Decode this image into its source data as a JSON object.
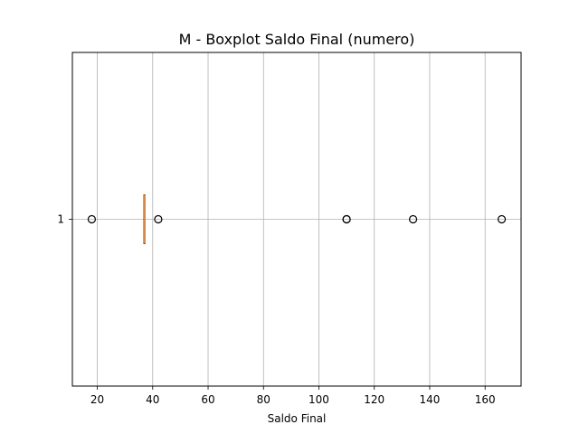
{
  "chart_data": {
    "type": "boxplot",
    "orientation": "horizontal",
    "title": "M - Boxplot Saldo Final (numero)",
    "xlabel": "Saldo Final",
    "ylabel": "",
    "xlim": [
      11,
      173
    ],
    "xticks": [
      20,
      40,
      60,
      80,
      100,
      120,
      140,
      160
    ],
    "ytick_labels": [
      "1"
    ],
    "grid": true,
    "colors": {
      "median": "#ff7f0e",
      "box": "#000000",
      "grid": "#b0b0b0"
    },
    "series": [
      {
        "category": "1",
        "q1": 37,
        "median": 37,
        "q3": 37,
        "whisker_low": 37,
        "whisker_high": 37,
        "outliers": [
          18,
          42,
          110,
          110,
          134,
          166
        ]
      }
    ]
  }
}
